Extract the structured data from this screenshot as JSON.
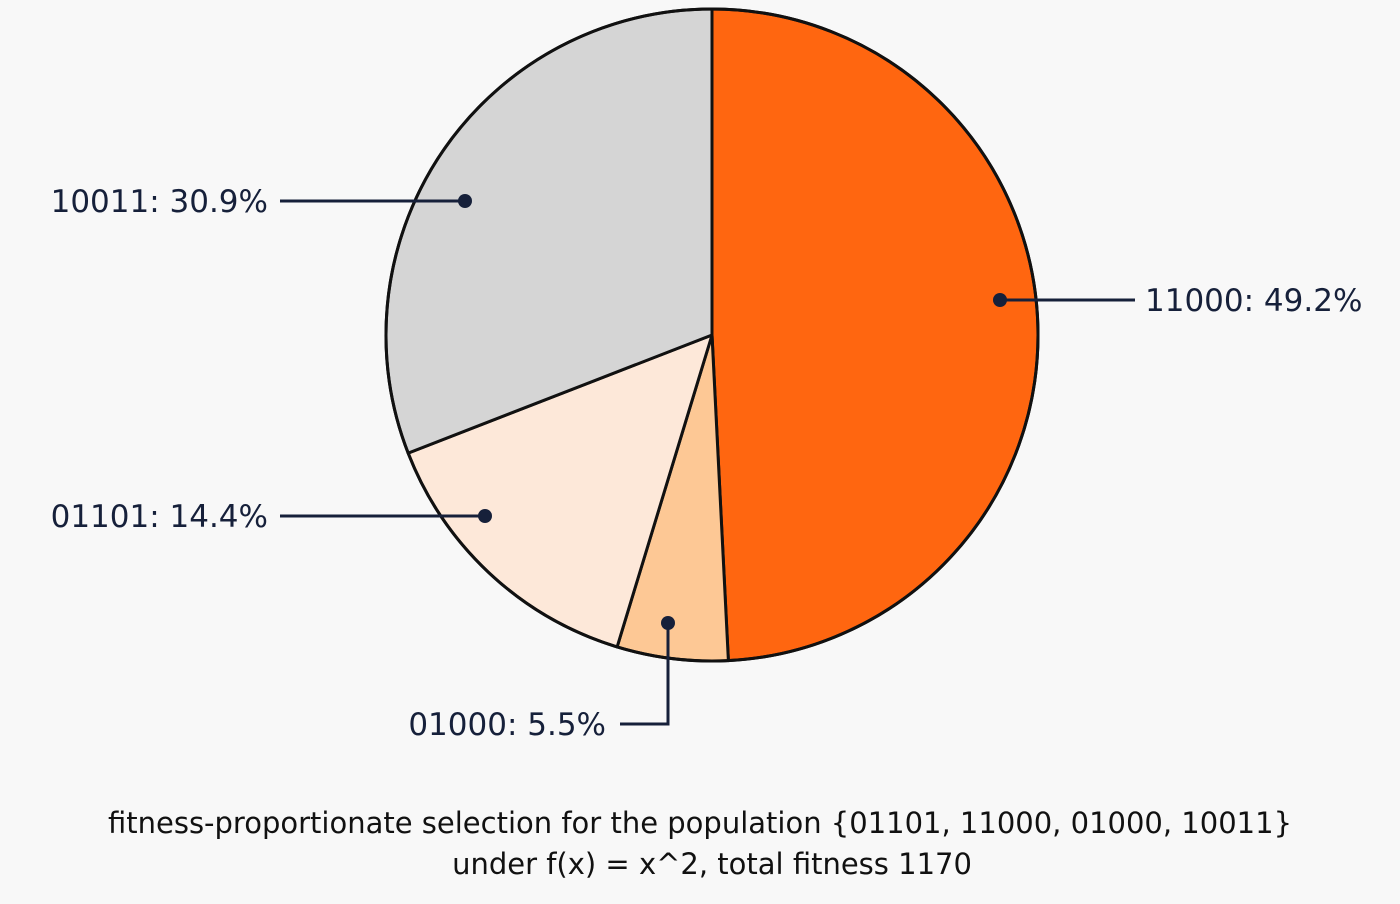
{
  "chart_data": {
    "type": "pie",
    "title": "",
    "slices": [
      {
        "label": "11000: 49.2%",
        "category": "11000",
        "value": 49.2,
        "color": "#ff6610"
      },
      {
        "label": "01000: 5.5%",
        "category": "01000",
        "value": 5.5,
        "color": "#fdc895"
      },
      {
        "label": "01101: 14.4%",
        "category": "01101",
        "value": 14.4,
        "color": "#fde8d9"
      },
      {
        "label": "10011: 30.9%",
        "category": "10011",
        "value": 30.9,
        "color": "#d5d5d5"
      }
    ],
    "caption": {
      "line1": "fitness-proportionate selection for the population {01101, 11000, 01000, 10011}",
      "line2": "under f(x) = x^2, total fitness 1170"
    },
    "start_angle": "12 o'clock",
    "direction": "clockwise",
    "outline_color": "#111111",
    "leader_color": "#16203a"
  }
}
